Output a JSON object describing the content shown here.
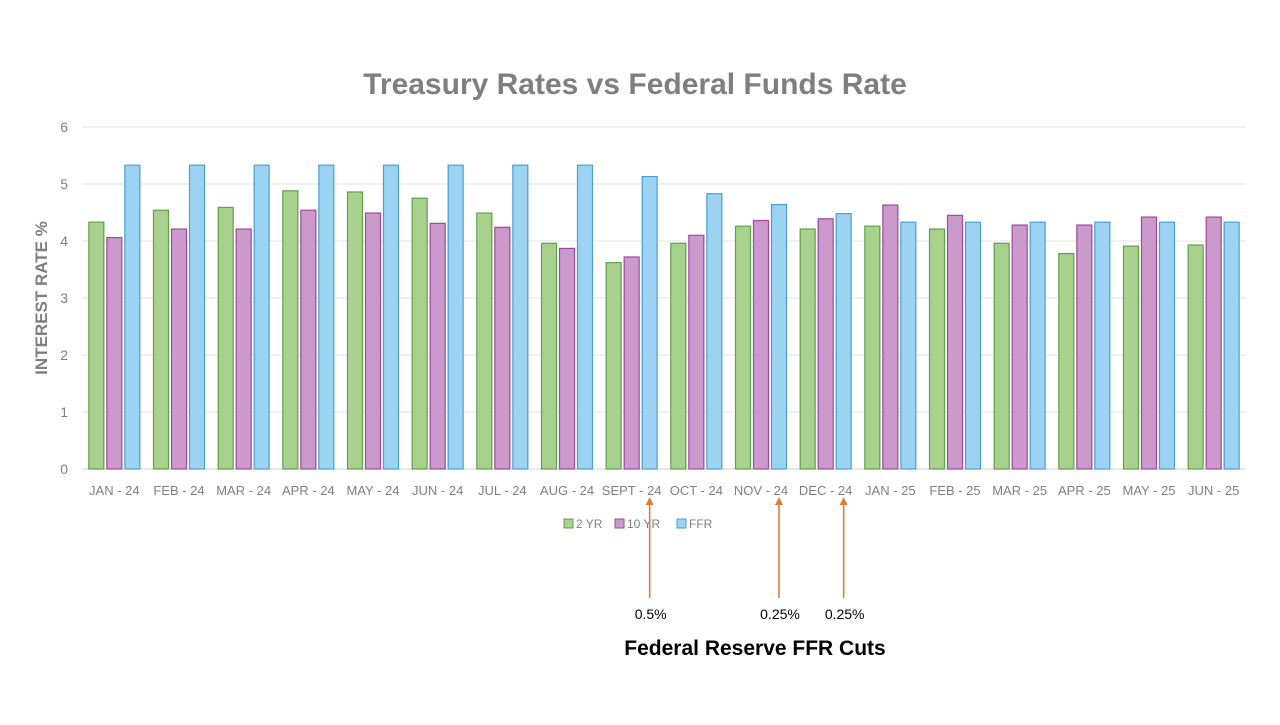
{
  "chart_data": {
    "type": "bar",
    "title": "Treasury Rates vs Federal Funds Rate",
    "ylabel": "INTEREST RATE %",
    "xlabel": "",
    "ylim": [
      0,
      6
    ],
    "yticks": [
      0,
      1,
      2,
      3,
      4,
      5,
      6
    ],
    "grid": true,
    "legend_position": "bottom",
    "categories": [
      "JAN - 24",
      "FEB - 24",
      "MAR - 24",
      "APR - 24",
      "MAY - 24",
      "JUN - 24",
      "JUL - 24",
      "AUG - 24",
      "SEPT - 24",
      "OCT - 24",
      "NOV - 24",
      "DEC - 24",
      "JAN - 25",
      "FEB - 25",
      "MAR - 25",
      "APR - 25",
      "MAY - 25",
      "JUN - 25"
    ],
    "series": [
      {
        "name": "2 YR",
        "fill": "#a9d18e",
        "stroke": "#5fa049",
        "values": [
          4.33,
          4.54,
          4.59,
          4.88,
          4.86,
          4.75,
          4.49,
          3.96,
          3.62,
          3.96,
          4.26,
          4.21,
          4.26,
          4.21,
          3.96,
          3.78,
          3.91,
          3.93
        ]
      },
      {
        "name": "10 YR",
        "fill": "#cc99cc",
        "stroke": "#9e4a9e",
        "values": [
          4.06,
          4.21,
          4.21,
          4.54,
          4.49,
          4.31,
          4.24,
          3.87,
          3.72,
          4.1,
          4.36,
          4.39,
          4.63,
          4.45,
          4.28,
          4.28,
          4.42,
          4.42
        ]
      },
      {
        "name": "FFR",
        "fill": "#9dd3f2",
        "stroke": "#4a9fd0",
        "values": [
          5.33,
          5.33,
          5.33,
          5.33,
          5.33,
          5.33,
          5.33,
          5.33,
          5.13,
          4.83,
          4.64,
          4.48,
          4.33,
          4.33,
          4.33,
          4.33,
          4.33,
          4.33
        ]
      }
    ],
    "annotations": {
      "color": "#e07b39",
      "title": "Federal Reserve FFR Cuts",
      "cuts": [
        {
          "category": "SEPT - 24",
          "label": "0.5%"
        },
        {
          "category": "NOV - 24",
          "label": "0.25%"
        },
        {
          "category": "DEC - 24",
          "label": "0.25%"
        }
      ]
    }
  }
}
